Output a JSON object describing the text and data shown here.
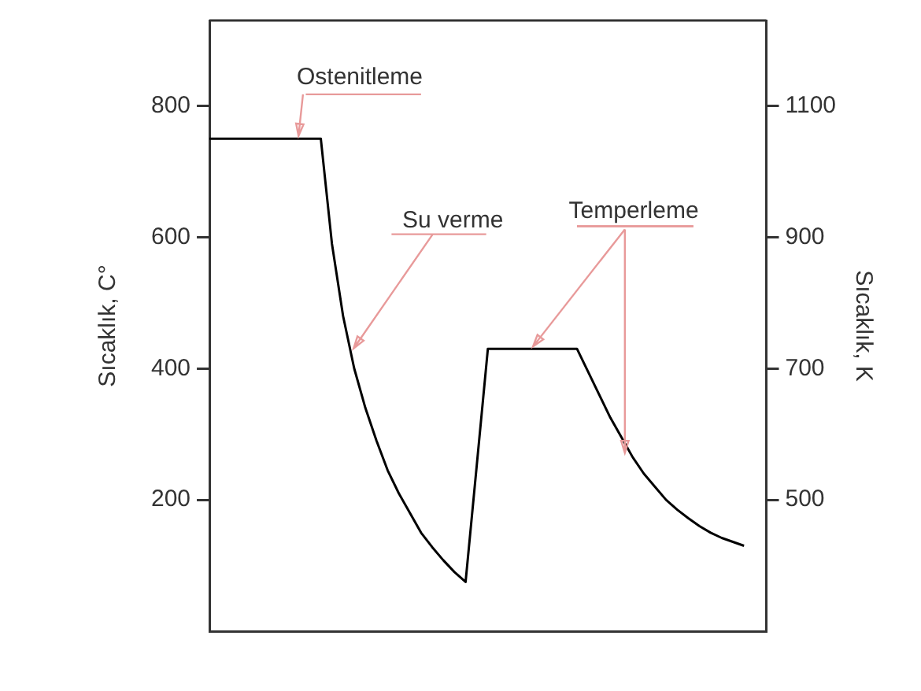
{
  "chart_data": {
    "type": "line",
    "ylabel": "Sıcaklık, C°",
    "y2label": "Sıcaklık, K",
    "categories": [
      null,
      null,
      null,
      null,
      null,
      null,
      null,
      null,
      null,
      null,
      null,
      null,
      null,
      null,
      null,
      null,
      null,
      null,
      null,
      null,
      null,
      null,
      null,
      null,
      null,
      null,
      null,
      null,
      null,
      null,
      null,
      null,
      null,
      null,
      null,
      null,
      null,
      null,
      null,
      null,
      null,
      null,
      null,
      null,
      null,
      null,
      null,
      null,
      null,
      null,
      null
    ],
    "series": [
      {
        "color": "#000000",
        "values": [
          750,
          750,
          750,
          750,
          750,
          750,
          750,
          750,
          750,
          750,
          750,
          590,
          480,
          400,
          340,
          290,
          245,
          210,
          180,
          150,
          128,
          108,
          90,
          75,
          252,
          430,
          430,
          430,
          430,
          430,
          430,
          430,
          430,
          430,
          395,
          360,
          325,
          295,
          265,
          240,
          220,
          200,
          185,
          172,
          160,
          150,
          142,
          136,
          130,
          null,
          null
        ]
      }
    ],
    "ylim": [
      0,
      930
    ],
    "yticks": [
      200,
      400,
      600,
      800
    ],
    "y2lim": [
      300,
      1230
    ],
    "y2ticks": [
      500,
      700,
      900,
      1100
    ],
    "grid": false,
    "legend": false,
    "marker": "none",
    "line_style": "solid",
    "annotations": [
      "Ostenitleme",
      "Su verme",
      "Temperleme"
    ]
  }
}
